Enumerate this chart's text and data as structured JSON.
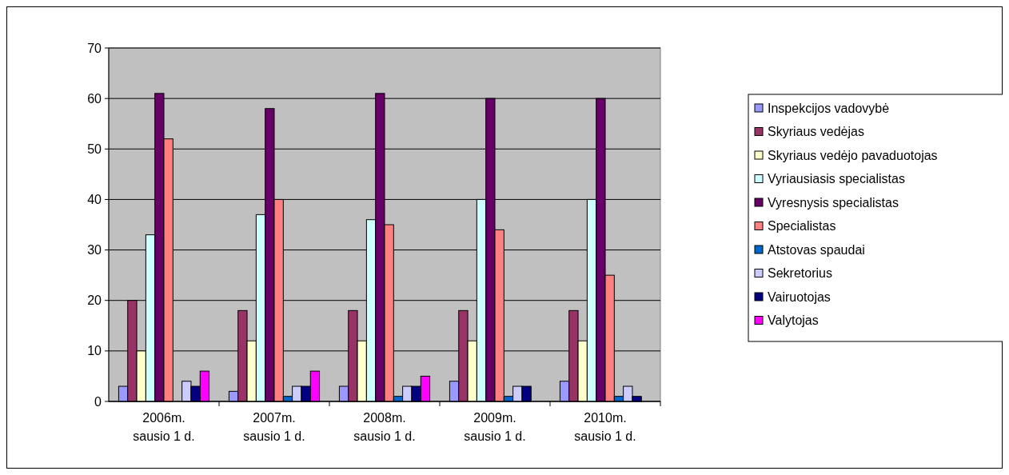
{
  "chart_data": {
    "type": "bar",
    "categories": [
      "2006m. sausio 1 d.",
      "2007m. sausio 1 d.",
      "2008m. sausio 1 d.",
      "2009m. sausio 1 d.",
      "2010m. sausio 1 d."
    ],
    "series": [
      {
        "name": "Inspekcijos vadovybė",
        "color": "#9999ff",
        "values": [
          3,
          2,
          3,
          4,
          4
        ]
      },
      {
        "name": "Skyriaus vedėjas",
        "color": "#993366",
        "values": [
          20,
          18,
          18,
          18,
          18
        ]
      },
      {
        "name": "Skyriaus vedėjo pavaduotojas",
        "color": "#ffffcc",
        "values": [
          10,
          12,
          12,
          12,
          12
        ]
      },
      {
        "name": "Vyriausiasis specialistas",
        "color": "#ccffff",
        "values": [
          33,
          37,
          36,
          40,
          40
        ]
      },
      {
        "name": "Vyresnysis specialistas",
        "color": "#660066",
        "values": [
          61,
          58,
          61,
          60,
          60
        ]
      },
      {
        "name": "Specialistas",
        "color": "#ff8080",
        "values": [
          52,
          40,
          35,
          34,
          25
        ]
      },
      {
        "name": "Atstovas spaudai",
        "color": "#0066cc",
        "values": [
          0,
          1,
          1,
          1,
          1
        ]
      },
      {
        "name": "Sekretorius",
        "color": "#ccccff",
        "values": [
          4,
          3,
          3,
          3,
          3
        ]
      },
      {
        "name": "Vairuotojas",
        "color": "#000080",
        "values": [
          3,
          3,
          3,
          3,
          1
        ]
      },
      {
        "name": "Valytojas",
        "color": "#ff00ff",
        "values": [
          6,
          6,
          5,
          0,
          0
        ]
      }
    ],
    "ylim": [
      0,
      70
    ],
    "yticks": [
      0,
      10,
      20,
      30,
      40,
      50,
      60,
      70
    ],
    "grid": "y",
    "legend": "right"
  }
}
